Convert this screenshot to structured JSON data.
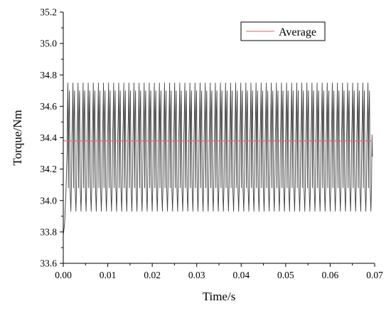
{
  "chart_data": {
    "type": "line",
    "title": "",
    "xlabel": "Time/s",
    "ylabel": "Torque/Nm",
    "xlim": [
      0.0,
      0.07
    ],
    "ylim": [
      33.6,
      35.2
    ],
    "x_ticks": [
      "0.00",
      "0.01",
      "0.02",
      "0.03",
      "0.04",
      "0.05",
      "0.06",
      "0.07"
    ],
    "y_ticks": [
      "33.6",
      "33.8",
      "34.0",
      "34.2",
      "34.4",
      "34.6",
      "34.8",
      "35.0",
      "35.2"
    ],
    "grid": false,
    "legend": {
      "position": "top-right",
      "entries": [
        "Average"
      ]
    },
    "series": [
      {
        "color": "#404040",
        "x_start": 0.0,
        "x_end": 0.0695,
        "startup": [
          [
            0.0,
            33.78
          ],
          [
            0.0003,
            33.85
          ],
          [
            0.0006,
            34.05
          ],
          [
            0.0009,
            34.35
          ]
        ],
        "oscillation": {
          "min": 33.93,
          "max": 34.75,
          "mid_low": 34.08,
          "mid_high": 34.52,
          "cycles": 60
        }
      },
      {
        "name": "Average",
        "color": "#e06666",
        "x": [
          0.0,
          0.0695
        ],
        "y": [
          34.38,
          34.38
        ]
      }
    ]
  }
}
